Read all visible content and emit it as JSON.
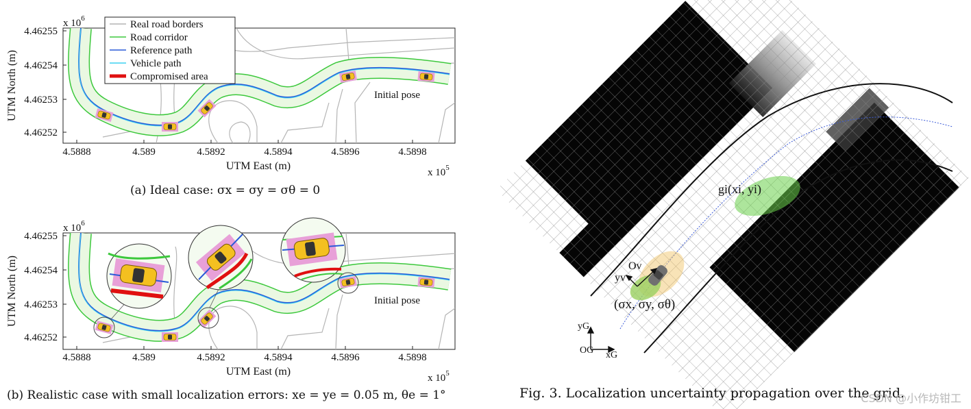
{
  "figure_a": {
    "exponent_y": "x 10",
    "exponent_y_sup": "6",
    "exponent_x": "x 10",
    "exponent_x_sup": "5",
    "y_label": "UTM North (m)",
    "x_label": "UTM East (m)",
    "y_ticks": [
      "4.46255",
      "4.46254",
      "4.46253",
      "4.46252"
    ],
    "x_ticks": [
      "4.5888",
      "4.589",
      "4.5892",
      "4.5894",
      "4.5896",
      "4.5898"
    ],
    "legend": [
      "Real road borders",
      "Road corridor",
      "Reference path",
      "Vehicle path",
      "Compromised area"
    ],
    "annotation": "Initial pose",
    "caption": "(a) Ideal case: σx = σy = σθ = 0"
  },
  "figure_b": {
    "exponent_y": "x 10",
    "exponent_y_sup": "6",
    "exponent_x": "x 10",
    "exponent_x_sup": "5",
    "y_label": "UTM North (m)",
    "x_label": "UTM East (m)",
    "y_ticks": [
      "4.46255",
      "4.46254",
      "4.46253",
      "4.46252"
    ],
    "x_ticks": [
      "4.5888",
      "4.589",
      "4.5892",
      "4.5894",
      "4.5896",
      "4.5898"
    ],
    "annotation": "Initial pose",
    "caption": "(b) Realistic case with small localization errors: xe = ye = 0.05 m, θe = 1°"
  },
  "figure_3": {
    "label_g": "gi(xi, yi)",
    "label_ov": "Ov",
    "label_yv": "yv",
    "label_sigma": "(σx, σy, σθ)",
    "label_yg": "yG",
    "label_og": "OG",
    "label_xg": "xG",
    "caption": "Fig. 3.  Localization uncertainty propagation over the grid."
  },
  "watermark": "CSDN @小作坊钳工",
  "colors": {
    "road_border": "#b4b4b4",
    "corridor": "#3cc83c",
    "corridor_fill": "#e8f8e0",
    "reference": "#2a5ad8",
    "vehicle": "#3cd0f0",
    "compromised": "#e01010",
    "car": "#f4c020",
    "car_pad": "#e8a0d8"
  },
  "chart_data": [
    {
      "type": "line",
      "title": "(a) Ideal case: σx = σy = σθ = 0",
      "xlabel": "UTM East (m)",
      "ylabel": "UTM North (m)",
      "x_scale": "x 10^5",
      "y_scale": "x 10^6",
      "xlim": [
        4.58875,
        4.5899
      ],
      "ylim": [
        4.462515,
        4.46255
      ],
      "series": [
        {
          "name": "Reference path",
          "x": [
            4.58875,
            4.58876,
            4.5888,
            4.5889,
            4.58905,
            4.58912,
            4.58918,
            4.58925,
            4.58935,
            4.5895,
            4.58963,
            4.5898,
            4.58985
          ],
          "y": [
            4.462545,
            4.462535,
            4.462527,
            4.462524,
            4.462521,
            4.462523,
            4.462527,
            4.462529,
            4.462527,
            4.462531,
            4.462535,
            4.462536,
            4.462535
          ]
        }
      ],
      "legend": [
        "Real road borders",
        "Road corridor",
        "Reference path",
        "Vehicle path",
        "Compromised area"
      ],
      "legend_position": "top-left"
    },
    {
      "type": "line",
      "title": "(b) Realistic case with small localization errors: xe = ye = 0.05 m, θe = 1°",
      "xlabel": "UTM East (m)",
      "ylabel": "UTM North (m)",
      "x_scale": "x 10^5",
      "y_scale": "x 10^6",
      "xlim": [
        4.58875,
        4.5899
      ],
      "ylim": [
        4.462515,
        4.46255
      ],
      "series": [
        {
          "name": "Reference path",
          "x": [
            4.58875,
            4.58876,
            4.5888,
            4.5889,
            4.58905,
            4.58912,
            4.58918,
            4.58925,
            4.58935,
            4.5895,
            4.58963,
            4.5898,
            4.58985
          ],
          "y": [
            4.462545,
            4.462535,
            4.462527,
            4.462524,
            4.462521,
            4.462523,
            4.462527,
            4.462529,
            4.462527,
            4.462531,
            4.462535,
            4.462536,
            4.462535
          ]
        }
      ]
    }
  ]
}
